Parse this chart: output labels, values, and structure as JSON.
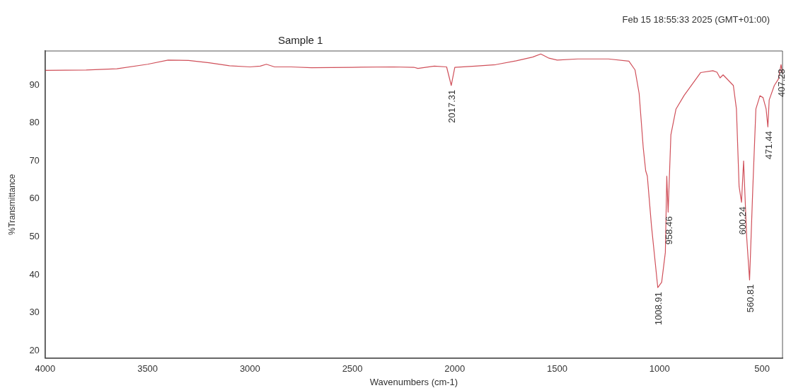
{
  "chart_data": {
    "type": "line",
    "title": "Sample 1",
    "xlabel": "Wavenumbers (cm-1)",
    "ylabel": "%Transmittance",
    "xlim": [
      4000,
      400
    ],
    "xticks": [
      4000,
      3500,
      3000,
      2500,
      2000,
      1500,
      1000,
      500
    ],
    "ylim": [
      18,
      99
    ],
    "yticks": [
      20,
      30,
      40,
      50,
      60,
      70,
      80,
      90
    ],
    "grid": false,
    "legend": false,
    "marker": "none",
    "line_style": "solid",
    "x": [
      4000,
      3800,
      3650,
      3500,
      3400,
      3300,
      3200,
      3100,
      3000,
      2950,
      2920,
      2880,
      2800,
      2700,
      2500,
      2300,
      2200,
      2180,
      2100,
      2040,
      2017.31,
      2000,
      1900,
      1800,
      1700,
      1620,
      1580,
      1540,
      1500,
      1400,
      1250,
      1150,
      1120,
      1100,
      1080,
      1068,
      1060,
      1040,
      1008.91,
      990,
      972,
      965,
      958.46,
      945,
      920,
      880,
      800,
      740,
      720,
      705,
      690,
      640,
      625,
      612,
      600.24,
      590,
      575,
      560.81,
      545,
      530,
      510,
      495,
      480,
      471.44,
      465,
      440,
      420,
      407.28,
      400
    ],
    "series": [
      {
        "color": "#d0505a",
        "values": [
          93.9,
          94.0,
          94.3,
          95.5,
          96.6,
          96.5,
          95.9,
          95.1,
          94.8,
          95.0,
          95.5,
          94.8,
          94.8,
          94.6,
          94.7,
          94.8,
          94.7,
          94.4,
          95.0,
          94.8,
          89.9,
          94.7,
          95.0,
          95.4,
          96.4,
          97.4,
          98.2,
          97.1,
          96.6,
          96.9,
          96.9,
          96.3,
          94.0,
          87.8,
          73.5,
          67.4,
          66.0,
          53.0,
          36.6,
          38.0,
          45.9,
          66.0,
          56.5,
          76.9,
          83.7,
          87.3,
          93.3,
          93.8,
          93.4,
          91.9,
          92.7,
          89.9,
          83.7,
          63.3,
          59.1,
          70.0,
          50.0,
          38.6,
          62.8,
          83.7,
          87.2,
          86.7,
          83.7,
          79.0,
          86.1,
          89.9,
          91.6,
          95.4,
          93.0
        ]
      }
    ],
    "annotations": [
      "Feb 15 18:55:33 2025 (GMT+01:00)",
      {
        "text": "2017.31",
        "x": 2017.31,
        "y": 89.9
      },
      {
        "text": "1008.91",
        "x": 1008.91,
        "y": 36.6
      },
      {
        "text": "958.46",
        "x": 958.46,
        "y": 56.5
      },
      {
        "text": "600.24",
        "x": 600.24,
        "y": 59.1
      },
      {
        "text": "560.81",
        "x": 560.81,
        "y": 38.6
      },
      {
        "text": "471.44",
        "x": 471.44,
        "y": 79.0
      },
      {
        "text": "407.28",
        "x": 407.28,
        "y": 95.4
      }
    ]
  }
}
